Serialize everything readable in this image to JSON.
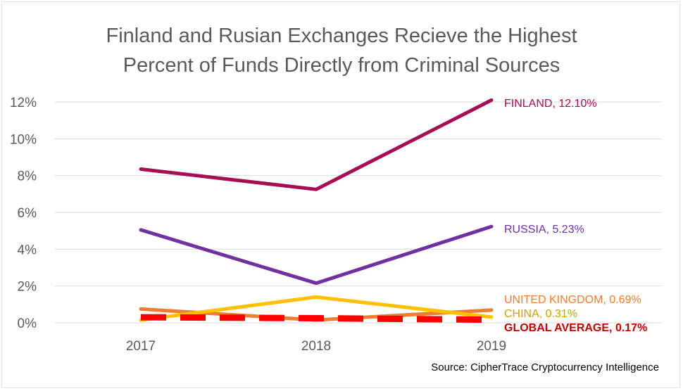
{
  "title_lines": [
    "Finland and Rusian Exchanges Recieve the Highest",
    "Percent of Funds Directly from Criminal Sources"
  ],
  "source": "Source: CipherTrace Cryptocurrency Intelligence",
  "chart_data": {
    "type": "line",
    "x": [
      "2017",
      "2018",
      "2019"
    ],
    "ylim": [
      0,
      12
    ],
    "yticks": [
      "0%",
      "2%",
      "4%",
      "6%",
      "8%",
      "10%",
      "12%"
    ],
    "grid": true,
    "series": [
      {
        "name": "FINLAND",
        "values": [
          8.35,
          7.25,
          12.1
        ],
        "color": "#a50e54",
        "label": "FINLAND, 12.10%",
        "label_color": "#a50e54",
        "label_bold": false,
        "dashed": false
      },
      {
        "name": "RUSSIA",
        "values": [
          5.05,
          2.15,
          5.23
        ],
        "color": "#7030a0",
        "label": "RUSSIA, 5.23%",
        "label_color": "#7030a0",
        "label_bold": false,
        "dashed": false
      },
      {
        "name": "UNITED KINGDOM",
        "values": [
          0.75,
          0.15,
          0.69
        ],
        "color": "#ed7d31",
        "label": "UNITED KINGDOM, 0.69%",
        "label_color": "#ed7d31",
        "label_bold": false,
        "dashed": false
      },
      {
        "name": "CHINA",
        "values": [
          0.15,
          1.4,
          0.31
        ],
        "color": "#ffc000",
        "label": "CHINA, 0.31%",
        "label_color": "#c9a200",
        "label_bold": false,
        "dashed": false
      },
      {
        "name": "GLOBAL AVERAGE",
        "values": [
          0.3,
          0.25,
          0.17
        ],
        "color": "#ff0000",
        "label": "GLOBAL AVERAGE, 0.17%",
        "label_color": "#c00000",
        "label_bold": true,
        "dashed": true
      }
    ]
  }
}
